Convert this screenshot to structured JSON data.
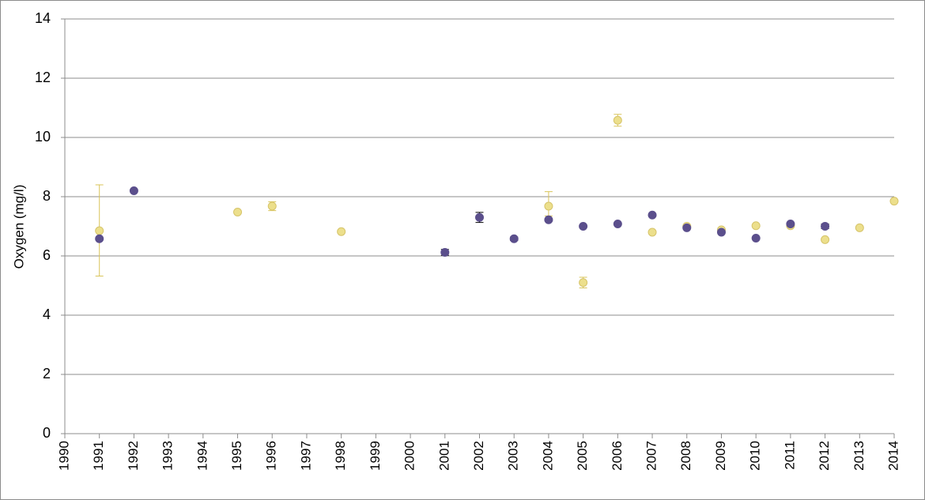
{
  "chart_data": {
    "type": "scatter",
    "title": "",
    "xlabel": "",
    "ylabel": "Oxygen (mg/l)",
    "xlim": [
      1990,
      2014
    ],
    "ylim": [
      0,
      14
    ],
    "x_ticks": [
      "1990",
      "1991",
      "1992",
      "1993",
      "1994",
      "1995",
      "1996",
      "1997",
      "1998",
      "1999",
      "2000",
      "2001",
      "2002",
      "2003",
      "2004",
      "2005",
      "2006",
      "2007",
      "2008",
      "2009",
      "2010",
      "2011",
      "2012",
      "2013",
      "2014"
    ],
    "y_ticks": [
      "0",
      "2",
      "4",
      "6",
      "8",
      "10",
      "12",
      "14"
    ],
    "grid": "horizontal",
    "legend": "none",
    "colors": {
      "series_a": "#5b4f8c",
      "series_b": "#ecdf8c",
      "series_b_edge": "#d6c46a",
      "series_b_error": "#d9c45a",
      "grid": "#8c8c8c"
    },
    "series": [
      {
        "marker_color": "#5b4f8c",
        "points": [
          {
            "x": 1991,
            "y": 6.58
          },
          {
            "x": 1992,
            "y": 8.2
          },
          {
            "x": 2001,
            "y": 6.12,
            "err": 0.1
          },
          {
            "x": 2002,
            "y": 7.3,
            "err": 0.17
          },
          {
            "x": 2003,
            "y": 6.58,
            "err": 0.06
          },
          {
            "x": 2004,
            "y": 7.22
          },
          {
            "x": 2005,
            "y": 7.0
          },
          {
            "x": 2006,
            "y": 7.08
          },
          {
            "x": 2007,
            "y": 7.38
          },
          {
            "x": 2008,
            "y": 6.95
          },
          {
            "x": 2009,
            "y": 6.8
          },
          {
            "x": 2010,
            "y": 6.6
          },
          {
            "x": 2011,
            "y": 7.08
          },
          {
            "x": 2012,
            "y": 7.0,
            "err": 0.08
          }
        ]
      },
      {
        "marker_color": "#ecdf8c",
        "points": [
          {
            "x": 1991,
            "y": 6.85,
            "err_high": 8.4,
            "err_low": 5.32
          },
          {
            "x": 1995,
            "y": 7.48
          },
          {
            "x": 1996,
            "y": 7.68,
            "err": 0.15
          },
          {
            "x": 1998,
            "y": 6.82
          },
          {
            "x": 2004,
            "y": 7.68,
            "err_high": 8.17,
            "err_low": 7.35
          },
          {
            "x": 2005,
            "y": 5.1,
            "err": 0.18
          },
          {
            "x": 2006,
            "y": 10.58,
            "err": 0.2
          },
          {
            "x": 2007,
            "y": 6.8
          },
          {
            "x": 2008,
            "y": 7.0
          },
          {
            "x": 2009,
            "y": 6.88
          },
          {
            "x": 2010,
            "y": 7.02
          },
          {
            "x": 2011,
            "y": 7.02
          },
          {
            "x": 2012,
            "y": 6.55
          },
          {
            "x": 2013,
            "y": 6.95
          },
          {
            "x": 2014,
            "y": 7.85
          }
        ]
      }
    ]
  }
}
